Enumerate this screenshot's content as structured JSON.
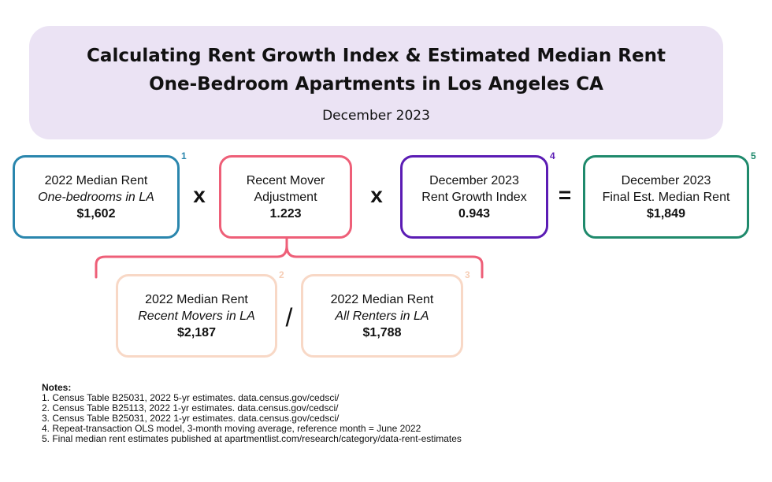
{
  "header": {
    "title_line1": "Calculating Rent Growth Index & Estimated Median Rent",
    "title_line2": "One-Bedroom Apartments in Los Angeles CA",
    "subtitle": "December 2023"
  },
  "boxes": {
    "median_rent_2022": {
      "line1": "2022 Median Rent",
      "line2": "One-bedrooms in LA",
      "value": "$1,602",
      "ref": "1",
      "color": "#2a86ad"
    },
    "recent_mover_adj": {
      "line1": "Recent Mover",
      "line2": "Adjustment",
      "value": "1.223",
      "color": "#ee5f78"
    },
    "rent_growth_index": {
      "line1": "December 2023",
      "line2": "Rent Growth Index",
      "value": "0.943",
      "ref": "4",
      "color": "#5b1cb4"
    },
    "final_median_rent": {
      "line1": "December 2023",
      "line2": "Final Est. Median Rent",
      "value": "$1,849",
      "ref": "5",
      "color": "#1f8a6c"
    },
    "recent_movers": {
      "line1": "2022 Median Rent",
      "line2": "Recent Movers in LA",
      "value": "$2,187",
      "ref": "2",
      "color": "#f8d8c6"
    },
    "all_renters": {
      "line1": "2022 Median Rent",
      "line2": "All Renters in LA",
      "value": "$1,788",
      "ref": "3",
      "color": "#f8d8c6"
    }
  },
  "operators": {
    "multiply1": "x",
    "multiply2": "x",
    "equals": "=",
    "divide": "/"
  },
  "notes": {
    "heading": "Notes:",
    "items": [
      "1.  Census Table B25031, 2022 5-yr estimates. data.census.gov/cedsci/",
      "2.  Census Table B25113, 2022 1-yr estimates. data.census.gov/cedsci/",
      "3.  Census Table B25031, 2022 1-yr estimates. data.census.gov/cedsci/",
      "4.  Repeat-transaction OLS model, 3-month moving average, reference month = June 2022",
      "5.  Final median rent estimates published at apartmentlist.com/research/category/data-rent-estimates"
    ]
  }
}
